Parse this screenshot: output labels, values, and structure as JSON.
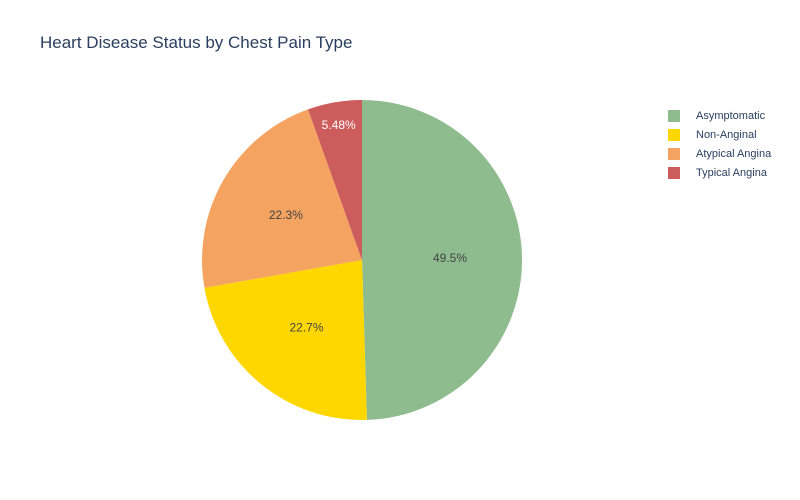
{
  "chart_data": {
    "type": "pie",
    "title": "Heart Disease Status by Chest Pain Type",
    "categories": [
      "Asymptomatic",
      "Non-Anginal",
      "Atypical Angina",
      "Typical Angina"
    ],
    "values": [
      49.5,
      22.7,
      22.3,
      5.48
    ],
    "labels": [
      "49.5%",
      "22.7%",
      "22.3%",
      "5.48%"
    ],
    "colors": [
      "#8fbc8f",
      "#ffd700",
      "#f4a460",
      "#cd5c5c"
    ],
    "label_colors": [
      "#444444",
      "#444444",
      "#444444",
      "#ffffff"
    ],
    "direction": "clockwise",
    "legend_position": "top-right"
  }
}
